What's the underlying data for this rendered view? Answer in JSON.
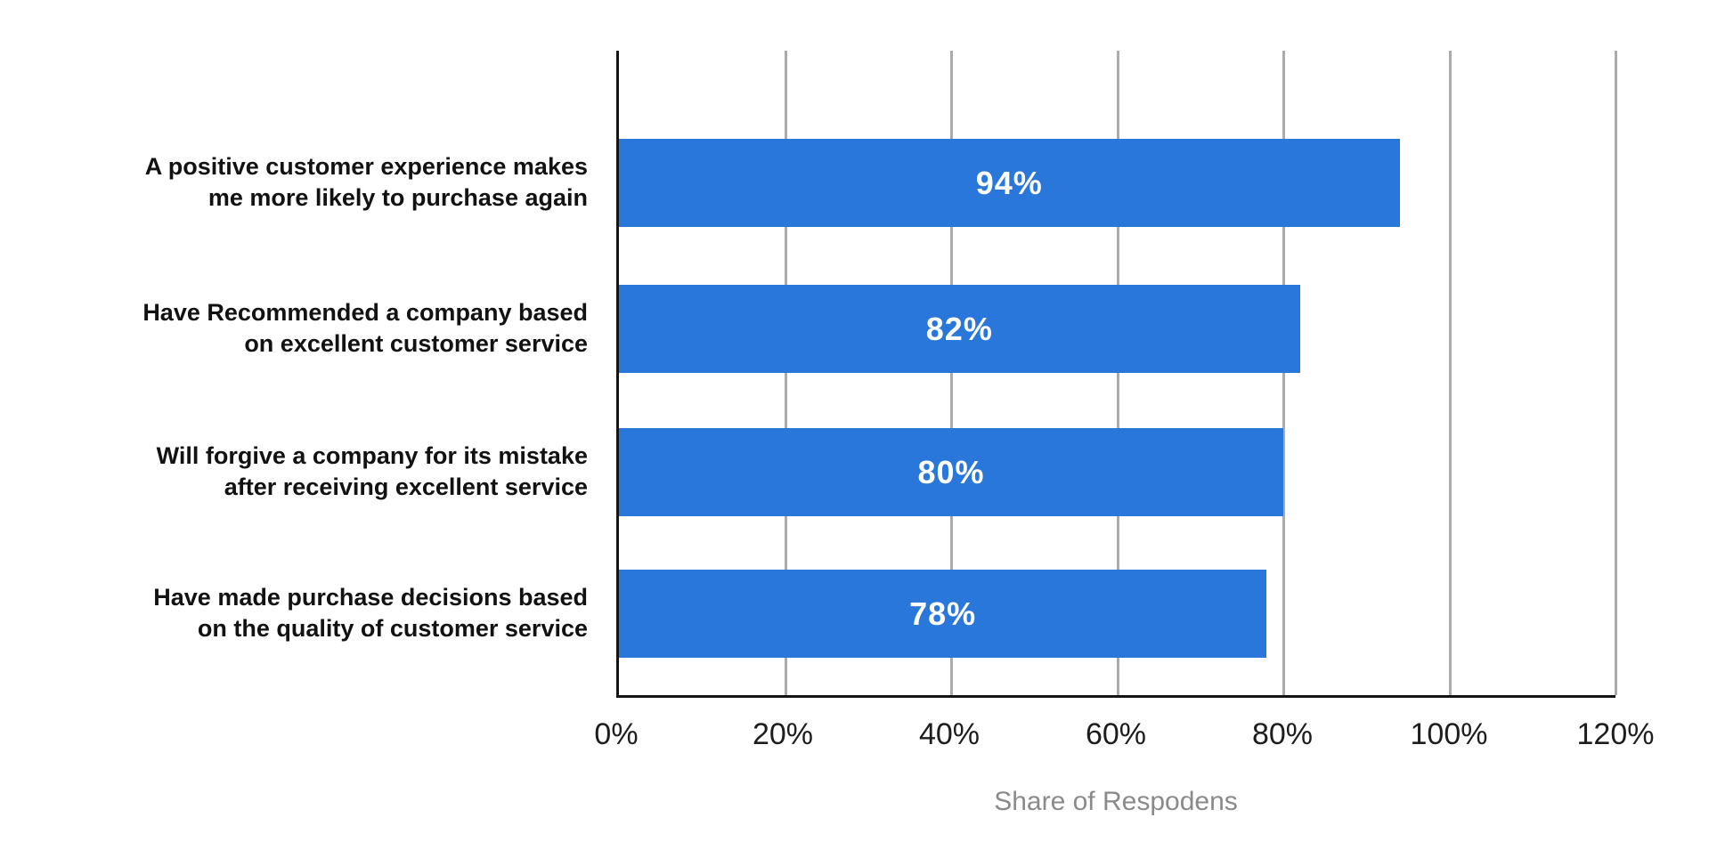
{
  "chart_data": {
    "type": "bar",
    "orientation": "horizontal",
    "title": "",
    "xlabel": "Share of Respodens",
    "ylabel": "",
    "xlim": [
      0,
      120
    ],
    "x_tick_labels": [
      "0%",
      "20%",
      "40%",
      "60%",
      "80%",
      "100%",
      "120%"
    ],
    "grid": "vertical-gridlines",
    "legend": "none",
    "categories": [
      "A positive customer experience makes\nme more likely to purchase again",
      "Have Recommended a company based\non excellent customer service",
      "Will forgive a company for its mistake\nafter receiving excellent service",
      "Have made purchase decisions based\non the quality of customer service"
    ],
    "values": [
      94,
      82,
      80,
      78
    ],
    "value_labels": [
      "94%",
      "82%",
      "80%",
      "78%"
    ],
    "colors": {
      "bar": "#2a77db",
      "value_label": "#ffffff",
      "gridline": "#ababab",
      "axis_line": "#141414",
      "tick_label": "#1d1d1d",
      "category_label": "#121212",
      "axis_title": "#8a8a8a",
      "background": "#ffffff"
    }
  }
}
